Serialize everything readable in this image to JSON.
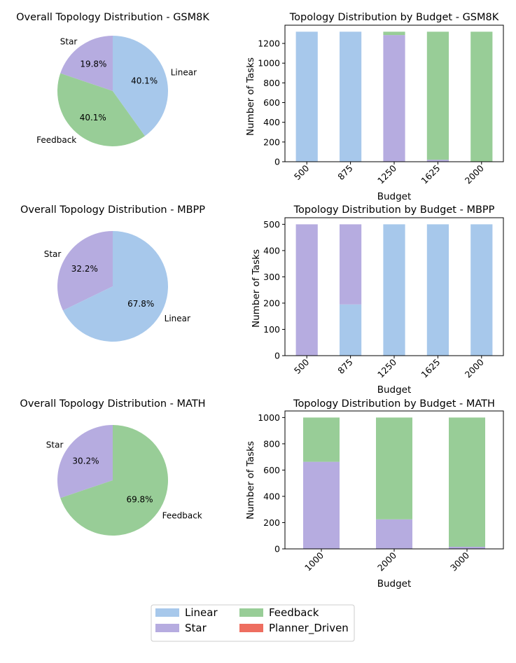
{
  "colors": {
    "Linear": "#a7c8eb",
    "Star": "#b6ace0",
    "Feedback": "#98cd97",
    "Planner_Driven": "#ee6e60"
  },
  "legend": {
    "entries": [
      "Linear",
      "Star",
      "Feedback",
      "Planner_Driven"
    ]
  },
  "chart_data": [
    {
      "id": "pie_gsm8k",
      "type": "pie",
      "title": "Overall Topology Distribution - GSM8K",
      "slices": [
        {
          "label": "Star",
          "value": 19.8,
          "pct_label": "19.8%"
        },
        {
          "label": "Feedback",
          "value": 40.1,
          "pct_label": "40.1%"
        },
        {
          "label": "Linear",
          "value": 40.1,
          "pct_label": "40.1%"
        }
      ]
    },
    {
      "id": "bar_gsm8k",
      "type": "bar",
      "stacked": true,
      "title": "Topology Distribution by Budget - GSM8K",
      "xlabel": "Budget",
      "ylabel": "Number of Tasks",
      "categories": [
        "500",
        "875",
        "1250",
        "1625",
        "2000"
      ],
      "ylim": [
        0,
        1385
      ],
      "yticks": [
        0,
        200,
        400,
        600,
        800,
        1000,
        1200
      ],
      "series": [
        {
          "name": "Linear",
          "values": [
            1319,
            1319,
            0,
            0,
            0
          ]
        },
        {
          "name": "Star",
          "values": [
            0,
            0,
            1285,
            20,
            0
          ]
        },
        {
          "name": "Feedback",
          "values": [
            0,
            0,
            34,
            1299,
            1319
          ]
        },
        {
          "name": "Planner_Driven",
          "values": [
            0,
            0,
            0,
            0,
            0
          ]
        }
      ]
    },
    {
      "id": "pie_mbpp",
      "type": "pie",
      "title": "Overall Topology Distribution - MBPP",
      "slices": [
        {
          "label": "Star",
          "value": 32.2,
          "pct_label": "32.2%"
        },
        {
          "label": "Linear",
          "value": 67.8,
          "pct_label": "67.8%"
        }
      ]
    },
    {
      "id": "bar_mbpp",
      "type": "bar",
      "stacked": true,
      "title": "Topology Distribution by Budget - MBPP",
      "xlabel": "Budget",
      "ylabel": "Number of Tasks",
      "categories": [
        "500",
        "875",
        "1250",
        "1625",
        "2000"
      ],
      "ylim": [
        0,
        525
      ],
      "yticks": [
        0,
        100,
        200,
        300,
        400,
        500
      ],
      "series": [
        {
          "name": "Linear",
          "values": [
            0,
            195,
            500,
            500,
            500
          ]
        },
        {
          "name": "Star",
          "values": [
            500,
            305,
            0,
            0,
            0
          ]
        },
        {
          "name": "Feedback",
          "values": [
            0,
            0,
            0,
            0,
            0
          ]
        },
        {
          "name": "Planner_Driven",
          "values": [
            0,
            0,
            0,
            0,
            0
          ]
        }
      ]
    },
    {
      "id": "pie_math",
      "type": "pie",
      "title": "Overall Topology Distribution - MATH",
      "slices": [
        {
          "label": "Star",
          "value": 30.2,
          "pct_label": "30.2%"
        },
        {
          "label": "Feedback",
          "value": 69.8,
          "pct_label": "69.8%"
        }
      ]
    },
    {
      "id": "bar_math",
      "type": "bar",
      "stacked": true,
      "title": "Topology Distribution by Budget - MATH",
      "xlabel": "Budget",
      "ylabel": "Number of Tasks",
      "categories": [
        "1000",
        "2000",
        "3000"
      ],
      "ylim": [
        0,
        1050
      ],
      "yticks": [
        0,
        200,
        400,
        600,
        800,
        1000
      ],
      "series": [
        {
          "name": "Linear",
          "values": [
            0,
            0,
            0
          ]
        },
        {
          "name": "Star",
          "values": [
            663,
            225,
            16
          ]
        },
        {
          "name": "Feedback",
          "values": [
            337,
            775,
            984
          ]
        },
        {
          "name": "Planner_Driven",
          "values": [
            0,
            0,
            0
          ]
        }
      ]
    }
  ]
}
